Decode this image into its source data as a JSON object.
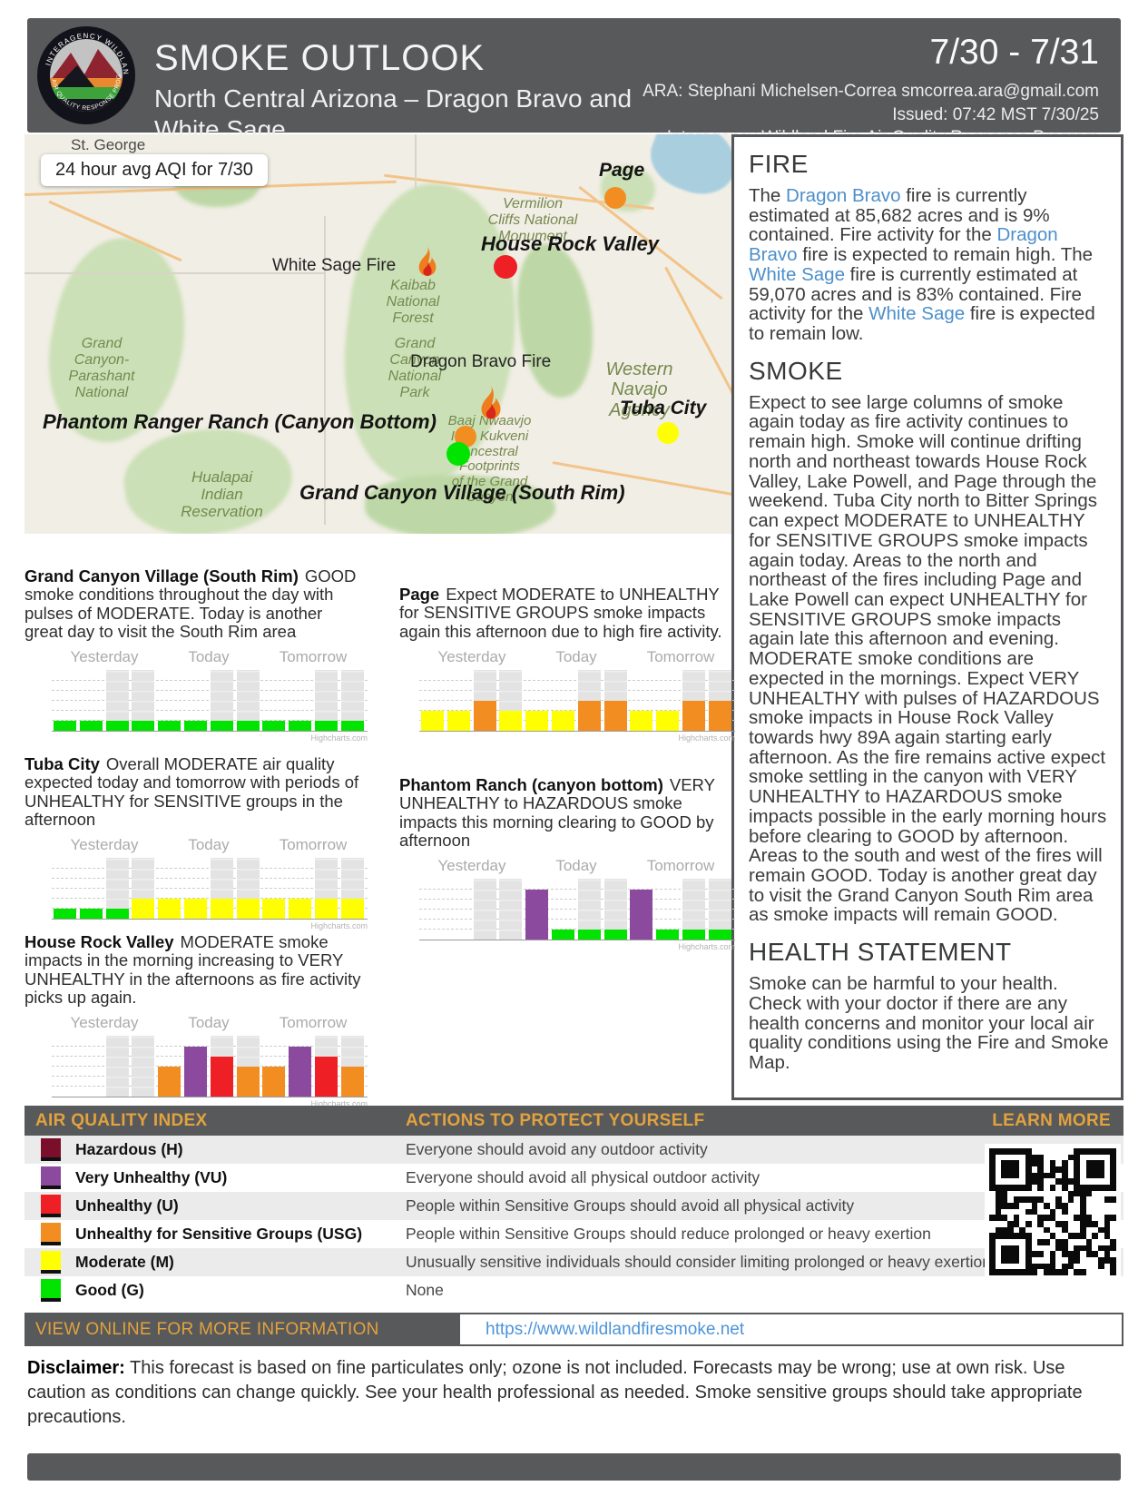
{
  "header": {
    "title": "SMOKE OUTLOOK",
    "date_range": "7/30 - 7/31",
    "subtitle": "North Central Arizona – Dragon Bravo and White Sage",
    "ara": "ARA: Stephani Michelsen-Correa smcorrea.ara@gmail.com",
    "issued": "Issued: 07:42 MST 7/30/25",
    "program": "Interagency Wildland Fire Air Quality Response Program",
    "logo_text_top": "INTERAGENCY WILDLAND FIRE",
    "logo_text_bottom": "AIR QUALITY RESPONSE PROGRAM"
  },
  "map": {
    "aqi_box": "24 hour avg AQI for 7/30",
    "labels": {
      "st_george": "St. George",
      "page": "Page",
      "vermilion": "Vermilion\nCliffs National\nMonument",
      "house_rock_valley": "House Rock Valley",
      "white_sage_fire": "White Sage Fire",
      "kaibab": "Kaibab\nNational\nForest",
      "parashant": "Grand\nCanyon-\nParashant\nNational",
      "dragon_bravo_fire": "Dragon Bravo Fire",
      "gc_national_park": "Grand\nCanyon\nNational\nPark",
      "western_navajo": "Western\nNavajo\nAgency",
      "tuba_city": "Tuba City",
      "phantom": "Phantom Ranger Ranch (Canyon Bottom)",
      "baaj": "Baaj Nwaavjo\nI'tah Kukveni\nAncestral\nFootprints\nof the Grand\nCanyon",
      "gc_village": "Grand Canyon Village (South Rim)",
      "hualapai": "Hualapai\nIndian\nReservation"
    },
    "markers": {
      "page": "USG",
      "house_rock_valley": "U",
      "tuba_city": "M",
      "phantom_ranch": "USG",
      "gc_village": "G"
    }
  },
  "sections": {
    "fire": {
      "heading": "FIRE",
      "rich": [
        {
          "t": "The "
        },
        {
          "t": "Dragon Bravo",
          "link": true
        },
        {
          "t": " fire is currently estimated at 85,682 acres and is 9% contained. Fire activity for the "
        },
        {
          "t": "Dragon Bravo",
          "link": true
        },
        {
          "t": " fire is expected to remain high. The "
        },
        {
          "t": "White Sage",
          "link": true
        },
        {
          "t": " fire is currently estimated at 59,070 acres and is 83% contained. Fire activity for the "
        },
        {
          "t": "White Sage",
          "link": true
        },
        {
          "t": " fire is expected to remain low."
        }
      ]
    },
    "smoke": {
      "heading": "SMOKE",
      "text": "Expect to see large columns of smoke again today as fire activity continues to remain high. Smoke will continue drifting north and northeast towards House Rock Valley, Lake Powell, and Page through the weekend. Tuba City north to Bitter Springs can expect MODERATE to UNHEALTHY for SENSITIVE GROUPS smoke impacts again today. Areas to the north and northeast of the fires including Page and Lake Powell can expect UNHEALTHY for SENSITIVE GROUPS smoke impacts again late this afternoon and evening. MODERATE smoke conditions are expected in the mornings. Expect VERY UNHEALTHY with pulses of HAZARDOUS smoke impacts in House Rock Valley towards hwy 89A again starting early afternoon. As the fire remains active expect smoke settling in the canyon with VERY UNHEALTHY to HAZARDOUS smoke impacts possible in the early morning hours before clearing to GOOD by afternoon. Areas to the south and west of the fires will remain GOOD. Today is another great day to visit the Grand Canyon South Rim area as smoke impacts will remain GOOD."
    },
    "health": {
      "heading": "HEALTH STATEMENT",
      "text": "Smoke can be harmful to your health. Check with your doctor if there are any health concerns and monitor your local air quality conditions using the Fire and Smoke Map."
    }
  },
  "stations": [
    {
      "name": "Grand Canyon Village (South Rim)",
      "description": "GOOD smoke conditions throughout the day with pulses of MODERATE. Today is another great day to visit the South Rim area"
    },
    {
      "name": "Tuba City",
      "description": "Overall MODERATE air quality expected today and tomorrow with periods of UNHEALTHY for SENSITIVE groups in the afternoon"
    },
    {
      "name": "House Rock Valley",
      "description": "MODERATE smoke impacts in the morning increasing to VERY UNHEALTHY in the afternoons as fire activity picks up again."
    },
    {
      "name": "Page",
      "description": "Expect MODERATE to UNHEALTHY for SENSITIVE GROUPS smoke impacts again this afternoon due to high fire activity."
    },
    {
      "name": "Phantom Ranch (canyon bottom)",
      "description": "VERY UNHEALTHY to HAZARDOUS smoke impacts this morning clearing to GOOD by afternoon"
    }
  ],
  "chart_watermark": "Highcharts.com",
  "aqi_code_levels": {
    "G": 1,
    "M": 2,
    "USG": 3,
    "U": 4,
    "VU": 5,
    "H": 6
  },
  "aqi_colors": {
    "G": "#00e400",
    "M": "#ffff00",
    "USG": "#f28d22",
    "U": "#ee1f25",
    "VU": "#8c4a9e",
    "H": "#7a0e2b"
  },
  "chart_data": [
    {
      "type": "bar",
      "title": "Grand Canyon Village (South Rim)",
      "day_labels": [
        "Yesterday",
        "Today",
        "Tomorrow"
      ],
      "slots_per_day": 4,
      "ylim": [
        0,
        6
      ],
      "values": [
        "G",
        "G",
        "G",
        "G",
        "G",
        "G",
        "G",
        "G",
        "G",
        "G",
        "G",
        "G"
      ],
      "night_slots": [
        2,
        3,
        6,
        7,
        10,
        11
      ]
    },
    {
      "type": "bar",
      "title": "Tuba City",
      "day_labels": [
        "Yesterday",
        "Today",
        "Tomorrow"
      ],
      "slots_per_day": 4,
      "ylim": [
        0,
        6
      ],
      "values": [
        "G",
        "G",
        "G",
        "M",
        "M",
        "M",
        "M",
        "M",
        "M",
        "M",
        "M",
        "M"
      ],
      "night_slots": [
        2,
        3,
        6,
        7,
        10,
        11
      ]
    },
    {
      "type": "bar",
      "title": "House Rock Valley",
      "day_labels": [
        "Yesterday",
        "Today",
        "Tomorrow"
      ],
      "slots_per_day": 4,
      "ylim": [
        0,
        6
      ],
      "values": [
        null,
        null,
        null,
        null,
        "USG",
        "VU",
        "U",
        "USG",
        "USG",
        "VU",
        "U",
        "USG"
      ],
      "night_slots": [
        2,
        3,
        6,
        7,
        10,
        11
      ]
    },
    {
      "type": "bar",
      "title": "Page",
      "day_labels": [
        "Yesterday",
        "Today",
        "Tomorrow"
      ],
      "slots_per_day": 4,
      "ylim": [
        0,
        6
      ],
      "values": [
        "M",
        "M",
        "USG",
        "M",
        "M",
        "M",
        "USG",
        "USG",
        "M",
        "M",
        "USG",
        "USG"
      ],
      "night_slots": [
        2,
        3,
        6,
        7,
        10,
        11
      ]
    },
    {
      "type": "bar",
      "title": "Phantom Ranch (canyon bottom)",
      "day_labels": [
        "Yesterday",
        "Today",
        "Tomorrow"
      ],
      "slots_per_day": 4,
      "ylim": [
        0,
        6
      ],
      "values": [
        null,
        null,
        null,
        null,
        "VU",
        "G",
        "G",
        "G",
        "VU",
        "G",
        "G",
        "G"
      ],
      "night_slots": [
        2,
        3,
        6,
        7,
        10,
        11
      ]
    }
  ],
  "aqi_table": {
    "headers": [
      "AIR QUALITY INDEX",
      "ACTIONS TO PROTECT YOURSELF",
      "LEARN MORE"
    ],
    "rows": [
      {
        "code": "H",
        "label": "Hazardous (H)",
        "action": "Everyone should avoid any outdoor activity"
      },
      {
        "code": "VU",
        "label": "Very Unhealthy (VU)",
        "action": "Everyone should avoid all physical outdoor activity"
      },
      {
        "code": "U",
        "label": "Unhealthy (U)",
        "action": "People within Sensitive Groups should avoid all physical activity"
      },
      {
        "code": "USG",
        "label": "Unhealthy for Sensitive Groups (USG)",
        "action": "People within Sensitive Groups should reduce prolonged or heavy exertion"
      },
      {
        "code": "M",
        "label": "Moderate (M)",
        "action": "Unusually sensitive individuals should consider limiting prolonged or heavy exertion"
      },
      {
        "code": "G",
        "label": "Good (G)",
        "action": "None"
      }
    ]
  },
  "view_online": {
    "label": "VIEW ONLINE FOR MORE INFORMATION",
    "url": "https://www.wildlandfiresmoke.net"
  },
  "disclaimer": {
    "label": "Disclaimer:",
    "text": " This forecast is based on fine particulates only; ozone is not included. Forecasts may be wrong; use at own risk. Use caution as conditions can change quickly. See your health professional as needed. Smoke sensitive groups should take appropriate precautions."
  }
}
